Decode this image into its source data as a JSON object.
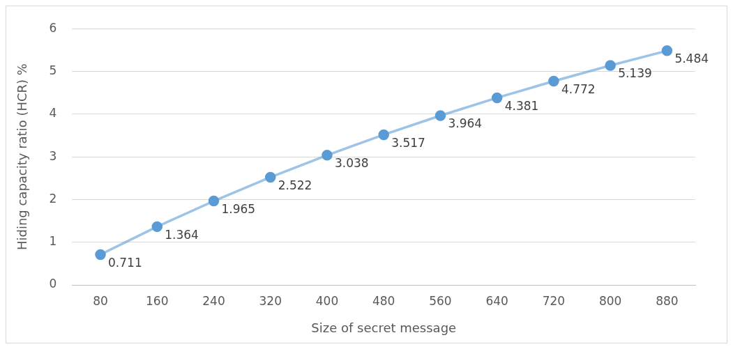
{
  "chart_data": {
    "type": "line",
    "xlabel": "Size of secret message",
    "ylabel": "Hiding capacity ratio (HCR) %",
    "categories": [
      "80",
      "160",
      "240",
      "320",
      "400",
      "480",
      "560",
      "640",
      "720",
      "800",
      "880"
    ],
    "series": [
      {
        "color": "#5b9bd5",
        "values": [
          0.711,
          1.364,
          1.965,
          2.522,
          3.038,
          3.517,
          3.964,
          4.381,
          4.772,
          5.139,
          5.484
        ]
      }
    ],
    "ylim": [
      0,
      6
    ],
    "yticks": [
      0,
      1,
      2,
      3,
      4,
      5,
      6
    ],
    "grid": "y",
    "legend": false,
    "marker": "circle",
    "line_style": "solid",
    "data_labels": true
  }
}
